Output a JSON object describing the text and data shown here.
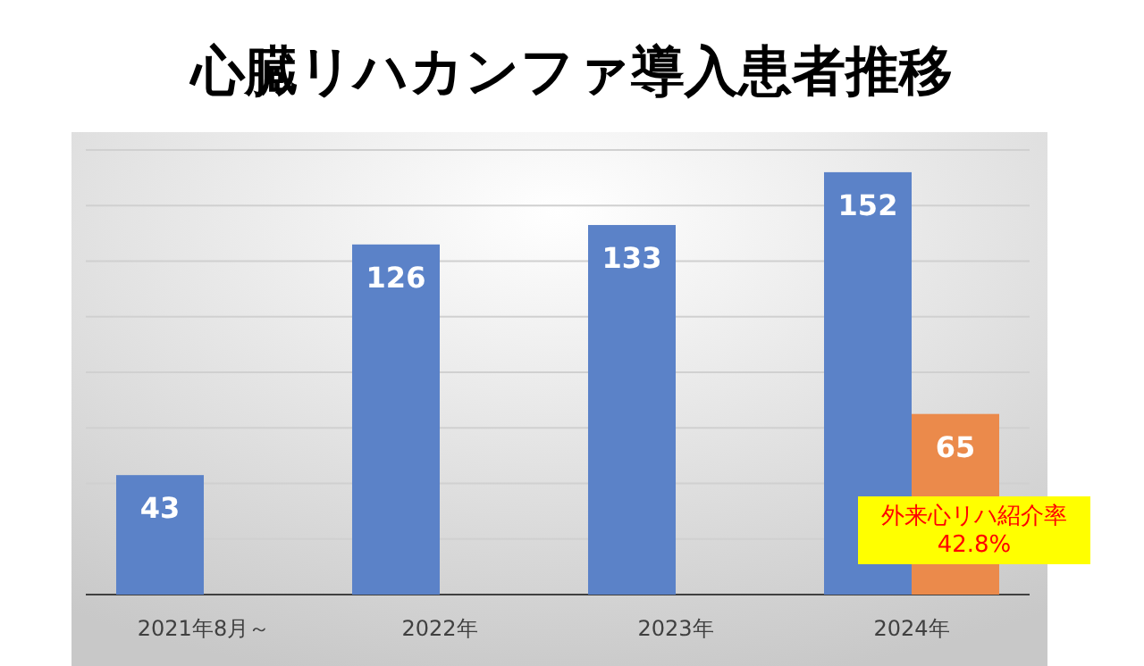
{
  "chart_data": {
    "type": "bar",
    "title": "心臓リハカンファ導入患者推移",
    "categories": [
      "2021年8月～",
      "2022年",
      "2023年",
      "2024年"
    ],
    "series": [
      {
        "color": "#5b82c8",
        "values": [
          43,
          126,
          133,
          152
        ]
      },
      {
        "color": "#eb8a4b",
        "values": [
          null,
          null,
          null,
          65
        ]
      }
    ],
    "ylim": [
      0,
      160
    ],
    "yticks": [
      {
        "value": 0,
        "label": null
      },
      {
        "value": 20,
        "label": null
      },
      {
        "value": 40,
        "label": null
      },
      {
        "value": 60,
        "label": null
      },
      {
        "value": 80,
        "label": null
      },
      {
        "value": 100,
        "label": null
      },
      {
        "value": 120,
        "label": null
      },
      {
        "value": 140,
        "label": null
      },
      {
        "value": 160,
        "label": null
      }
    ],
    "grid": "y",
    "data_labels": true,
    "tick_labels": "x",
    "annotations": [
      "外来心リハ紹介率\n42.8%"
    ]
  }
}
